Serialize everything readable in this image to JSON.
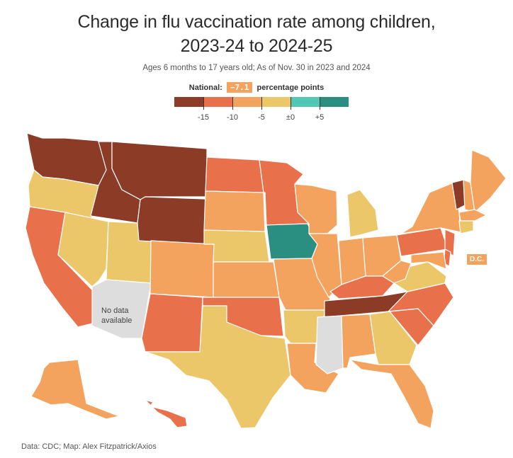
{
  "title_line1": "Change in flu vaccination rate among children,",
  "title_line2": "2023-24 to 2024-25",
  "subtitle": "Ages 6 months to 17 years old; As of Nov. 30 in 2023 and 2024",
  "national": {
    "label": "National:",
    "value": "−7.1",
    "unit": "percentage points"
  },
  "legend": {
    "colors": [
      "#8c3b26",
      "#e8704a",
      "#f3a35d",
      "#ecc76a",
      "#52c7b3",
      "#2a8f80"
    ],
    "ticks": [
      "-15",
      "-10",
      "-5",
      "±0",
      "+5"
    ]
  },
  "dc_label": "D.C.",
  "no_data_label_line1": "No data",
  "no_data_label_line2": "available",
  "source": "Data: CDC; Map: Alex Fitzpatrick/Axios",
  "states": {
    "WA": "#8c3b26",
    "OR": "#ecc76a",
    "CA": "#e8704a",
    "ID": "#8c3b26",
    "NV": "#ecc76a",
    "AZ": "#dddddd",
    "UT": "#ecc76a",
    "MT": "#8c3b26",
    "WY": "#8c3b26",
    "CO": "#f3a35d",
    "NM": "#e8704a",
    "TX": "#ecc76a",
    "ND": "#e8704a",
    "SD": "#f3a35d",
    "NE": "#ecc76a",
    "KS": "#f3a35d",
    "OK": "#e8704a",
    "MN": "#e8704a",
    "IA": "#2a8f80",
    "MO": "#f3a35d",
    "AR": "#ecc76a",
    "LA": "#f3a35d",
    "WI": "#f3a35d",
    "IL": "#f3a35d",
    "MI": "#ecc76a",
    "IN": "#f3a35d",
    "OH": "#f3a35d",
    "KY": "#e8704a",
    "TN": "#8c3b26",
    "MS": "#dddddd",
    "AL": "#f3a35d",
    "GA": "#ecc76a",
    "FL": "#f3a35d",
    "SC": "#e8704a",
    "NC": "#e8704a",
    "VA": "#ecc76a",
    "WV": "#f3a35d",
    "PA": "#e8704a",
    "NY": "#f3a35d",
    "VT": "#8c3b26",
    "NH": "#f3a35d",
    "ME": "#f3a35d",
    "MA": "#f3a35d",
    "CT": "#ecc76a",
    "NJ": "#e8704a",
    "MD": "#f3a35d",
    "DE": "#e8704a",
    "AK": "#f3a35d",
    "HI": "#e8704a"
  }
}
